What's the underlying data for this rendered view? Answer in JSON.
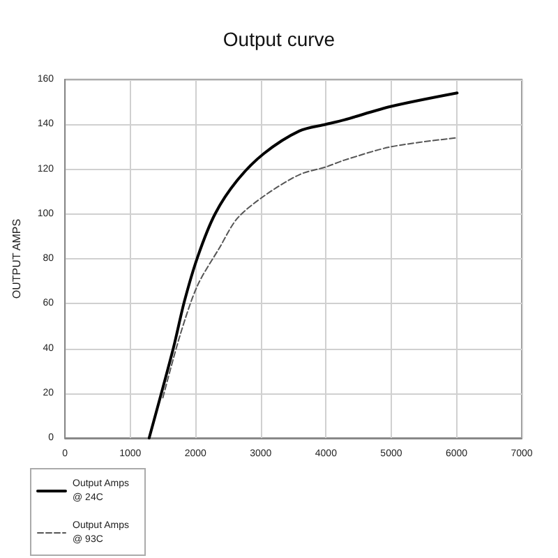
{
  "chart_data": {
    "type": "line",
    "title": "Output curve",
    "ylabel": "OUTPUT AMPS",
    "series": [
      {
        "name": "Output Amps @ 24C",
        "color": "#000000",
        "line_style": "solid",
        "x": [
          1290,
          1660,
          1830,
          2035,
          2300,
          2640,
          3050,
          3590,
          4000,
          4280,
          5000,
          6010
        ],
        "values": [
          0,
          40,
          61,
          81,
          100,
          115,
          127,
          137,
          140,
          142,
          148,
          154
        ]
      },
      {
        "name": "Output Amps @ 93C",
        "color": "#555555",
        "line_style": "dashed",
        "x": [
          1500,
          1765,
          2030,
          2370,
          2640,
          3050,
          3590,
          4000,
          4280,
          5000,
          6010
        ],
        "values": [
          18,
          46,
          68,
          85,
          98,
          108,
          117.5,
          121,
          124,
          130,
          134
        ]
      }
    ],
    "xlim": [
      0,
      7000
    ],
    "xticks": [
      0,
      1000,
      2000,
      3000,
      4000,
      5000,
      6000,
      7000
    ],
    "ylim": [
      0,
      160
    ],
    "yticks": [
      0,
      20,
      40,
      60,
      80,
      100,
      120,
      140,
      160
    ],
    "grid": true,
    "legend": "bottom left",
    "marker": "none"
  }
}
